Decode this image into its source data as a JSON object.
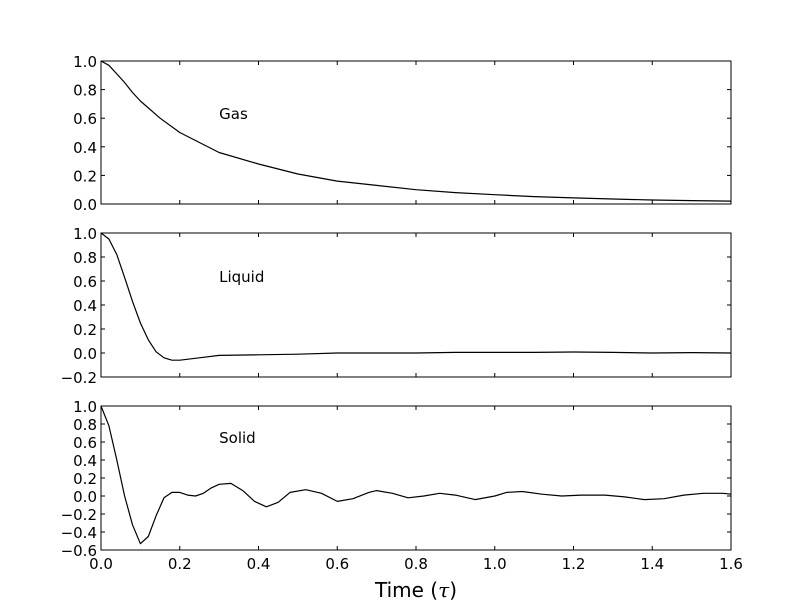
{
  "figure": {
    "xlabel_main": "Time (",
    "xlabel_symbol": "τ",
    "xlabel_close": ")"
  },
  "chart_data": [
    {
      "type": "line",
      "annotation": "Gas",
      "xlim": [
        0.0,
        1.6
      ],
      "ylim": [
        0.0,
        1.0
      ],
      "yticks": [
        "0.0",
        "0.2",
        "0.4",
        "0.6",
        "0.8",
        "1.0"
      ],
      "show_xticklabels": false,
      "series": [
        {
          "x": [
            0.0,
            0.02,
            0.04,
            0.06,
            0.08,
            0.1,
            0.15,
            0.2,
            0.3,
            0.4,
            0.5,
            0.6,
            0.7,
            0.8,
            0.9,
            1.0,
            1.1,
            1.2,
            1.3,
            1.4,
            1.5,
            1.6
          ],
          "y": [
            1.0,
            0.97,
            0.91,
            0.85,
            0.78,
            0.72,
            0.6,
            0.5,
            0.36,
            0.28,
            0.21,
            0.16,
            0.13,
            0.1,
            0.08,
            0.065,
            0.052,
            0.043,
            0.035,
            0.028,
            0.024,
            0.02
          ]
        }
      ]
    },
    {
      "type": "line",
      "annotation": "Liquid",
      "xlim": [
        0.0,
        1.6
      ],
      "ylim": [
        -0.2,
        1.0
      ],
      "yticks": [
        "−0.2",
        "0.0",
        "0.2",
        "0.4",
        "0.6",
        "0.8",
        "1.0"
      ],
      "show_xticklabels": false,
      "series": [
        {
          "x": [
            0.0,
            0.02,
            0.04,
            0.06,
            0.08,
            0.1,
            0.12,
            0.14,
            0.16,
            0.18,
            0.2,
            0.25,
            0.3,
            0.4,
            0.5,
            0.6,
            0.7,
            0.8,
            0.9,
            1.0,
            1.1,
            1.2,
            1.3,
            1.4,
            1.5,
            1.6
          ],
          "y": [
            1.0,
            0.95,
            0.82,
            0.63,
            0.43,
            0.25,
            0.11,
            0.01,
            -0.04,
            -0.06,
            -0.06,
            -0.04,
            -0.02,
            -0.015,
            -0.01,
            0.0,
            0.0,
            0.0,
            0.005,
            0.005,
            0.005,
            0.008,
            0.005,
            0.0,
            0.003,
            0.0
          ]
        }
      ]
    },
    {
      "type": "line",
      "annotation": "Solid",
      "xlim": [
        0.0,
        1.6
      ],
      "ylim": [
        -0.6,
        1.0
      ],
      "yticks": [
        "−0.6",
        "−0.4",
        "−0.2",
        "0.0",
        "0.2",
        "0.4",
        "0.6",
        "0.8",
        "1.0"
      ],
      "xticks": [
        "0.0",
        "0.2",
        "0.4",
        "0.6",
        "0.8",
        "1.0",
        "1.2",
        "1.4",
        "1.6"
      ],
      "show_xticklabels": true,
      "series": [
        {
          "x": [
            0.0,
            0.02,
            0.04,
            0.06,
            0.08,
            0.1,
            0.12,
            0.14,
            0.16,
            0.18,
            0.2,
            0.22,
            0.24,
            0.26,
            0.28,
            0.3,
            0.33,
            0.36,
            0.39,
            0.42,
            0.45,
            0.48,
            0.52,
            0.56,
            0.6,
            0.64,
            0.68,
            0.7,
            0.74,
            0.78,
            0.82,
            0.86,
            0.9,
            0.95,
            1.0,
            1.03,
            1.07,
            1.12,
            1.17,
            1.22,
            1.28,
            1.33,
            1.38,
            1.43,
            1.48,
            1.53,
            1.58,
            1.6
          ],
          "y": [
            1.0,
            0.78,
            0.4,
            0.0,
            -0.32,
            -0.53,
            -0.45,
            -0.22,
            -0.02,
            0.04,
            0.04,
            0.01,
            0.0,
            0.03,
            0.09,
            0.13,
            0.14,
            0.06,
            -0.06,
            -0.12,
            -0.07,
            0.04,
            0.07,
            0.03,
            -0.06,
            -0.03,
            0.04,
            0.06,
            0.03,
            -0.02,
            0.0,
            0.03,
            0.01,
            -0.04,
            0.0,
            0.04,
            0.05,
            0.02,
            0.0,
            0.01,
            0.01,
            -0.01,
            -0.04,
            -0.03,
            0.01,
            0.03,
            0.03,
            0.02
          ]
        }
      ]
    }
  ]
}
